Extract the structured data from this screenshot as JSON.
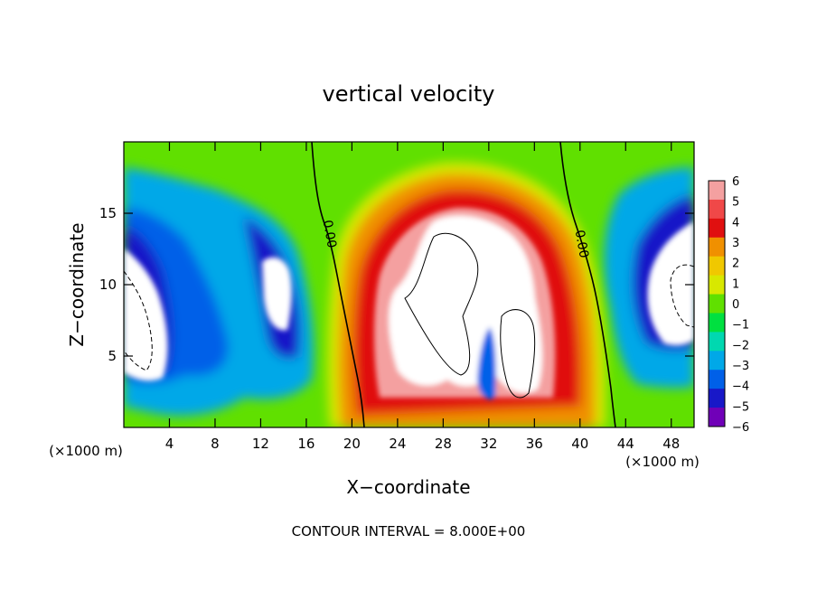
{
  "chart_data": {
    "type": "heatmap",
    "title": "vertical velocity",
    "xlabel": "X−coordinate",
    "ylabel": "Z−coordinate",
    "x_unit_label": "(×1000 m)",
    "y_unit_label": "(×1000 m)",
    "footer": "CONTOUR INTERVAL = 8.000E+00",
    "xlim": [
      0,
      50
    ],
    "ylim": [
      0,
      20
    ],
    "x_ticks": [
      4,
      8,
      12,
      16,
      20,
      24,
      28,
      32,
      36,
      40,
      44,
      48
    ],
    "y_ticks": [
      5,
      10,
      15
    ],
    "contour_labels": [
      {
        "text": "0.00",
        "x": 17.7,
        "y": 13.5
      },
      {
        "text": "0.00",
        "x": 39.8,
        "y": 12.8
      }
    ],
    "colorbar": {
      "levels": [
        6,
        5,
        4,
        3,
        2,
        1,
        0,
        -1,
        -2,
        -3,
        -4,
        -5,
        -6
      ],
      "tick_labels": [
        "6",
        "5",
        "4",
        "3",
        "2",
        "1",
        "0",
        "−1",
        "−2",
        "−3",
        "−4",
        "−5",
        "−6"
      ],
      "colors": [
        "#f4a0a0",
        "#f04848",
        "#e01010",
        "#f09000",
        "#f0c800",
        "#d8e800",
        "#60e000",
        "#00e040",
        "#00d8b0",
        "#00a8e8",
        "#0060e8",
        "#1818c8",
        "#7000b8"
      ]
    },
    "fields": {
      "background_value": 0,
      "updraft_core_x_range": [
        20,
        41
      ],
      "downdraft_regions_x": [
        [
          0,
          17
        ],
        [
          42,
          50
        ]
      ]
    }
  }
}
